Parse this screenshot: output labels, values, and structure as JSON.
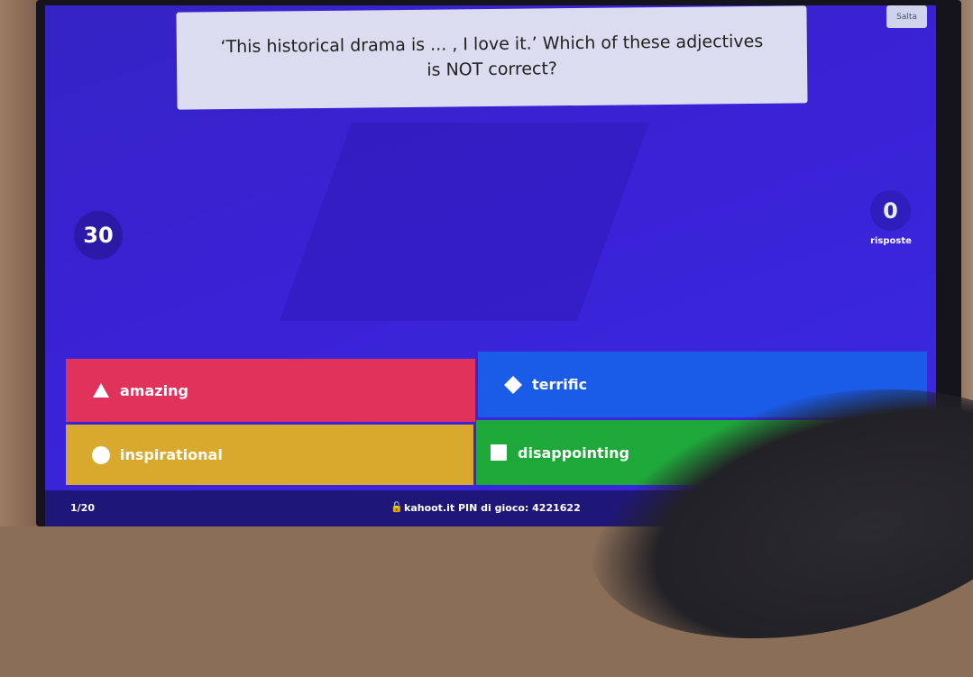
{
  "question": "‘This historical drama is ... , I love it.’ Which of these adjectives is NOT correct?",
  "skip_label": "Salta",
  "timer": "30",
  "answers_count": "0",
  "answers_label": "risposte",
  "answers": [
    {
      "label": "amazing",
      "icon": "triangle-icon",
      "color": "#e0325a"
    },
    {
      "label": "terrific",
      "icon": "diamond-icon",
      "color": "#1a5be8"
    },
    {
      "label": "inspirational",
      "icon": "circle-icon",
      "color": "#d9a92d"
    },
    {
      "label": "disappointing",
      "icon": "square-icon",
      "color": "#1fa83a"
    }
  ],
  "footer": {
    "progress": "1/20",
    "pin_text": "kahoot.it  PIN di gioco: 4221622",
    "lock_icon": "lock-icon"
  }
}
